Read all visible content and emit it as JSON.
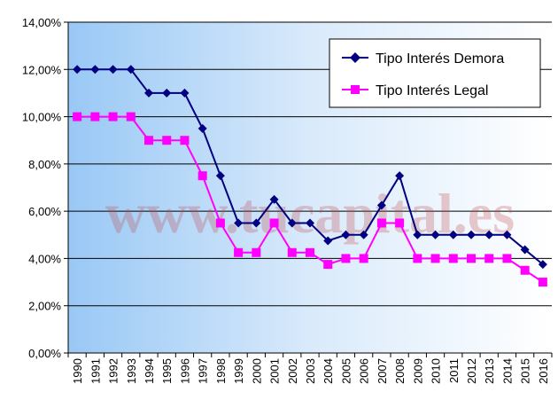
{
  "watermark": "www.tucapital.es",
  "chart_data": {
    "type": "line",
    "title": "",
    "xlabel": "",
    "ylabel": "",
    "ylim": [
      0,
      14
    ],
    "y_ticks": [
      "0,00%",
      "2,00%",
      "4,00%",
      "6,00%",
      "8,00%",
      "10,00%",
      "12,00%",
      "14,00%"
    ],
    "y_tick_values": [
      0,
      2,
      4,
      6,
      8,
      10,
      12,
      14
    ],
    "categories": [
      "1990",
      "1991",
      "1992",
      "1993",
      "1994",
      "1995",
      "1996",
      "1997",
      "1998",
      "1999",
      "2000",
      "2001",
      "2002",
      "2003",
      "2004",
      "2005",
      "2006",
      "2007",
      "2008",
      "2009",
      "2010",
      "2011",
      "2012",
      "2013",
      "2014",
      "2015",
      "2016"
    ],
    "grid": true,
    "legend_position": "top-right",
    "series": [
      {
        "name": "Tipo Interés Demora",
        "color": "#000080",
        "marker": "diamond",
        "values": [
          12,
          12,
          12,
          12,
          11,
          11,
          11,
          9.5,
          7.5,
          5.5,
          5.5,
          6.5,
          5.5,
          5.5,
          4.75,
          5,
          5,
          6.25,
          7.5,
          5,
          5,
          5,
          5,
          5,
          5,
          4.375,
          3.75
        ]
      },
      {
        "name": "Tipo Interés Legal",
        "color": "#ff00ff",
        "marker": "square",
        "values": [
          10,
          10,
          10,
          10,
          9,
          9,
          9,
          7.5,
          5.5,
          4.25,
          4.25,
          5.5,
          4.25,
          4.25,
          3.75,
          4,
          4,
          5.5,
          5.5,
          4,
          4,
          4,
          4,
          4,
          4,
          3.5,
          3
        ]
      }
    ]
  }
}
